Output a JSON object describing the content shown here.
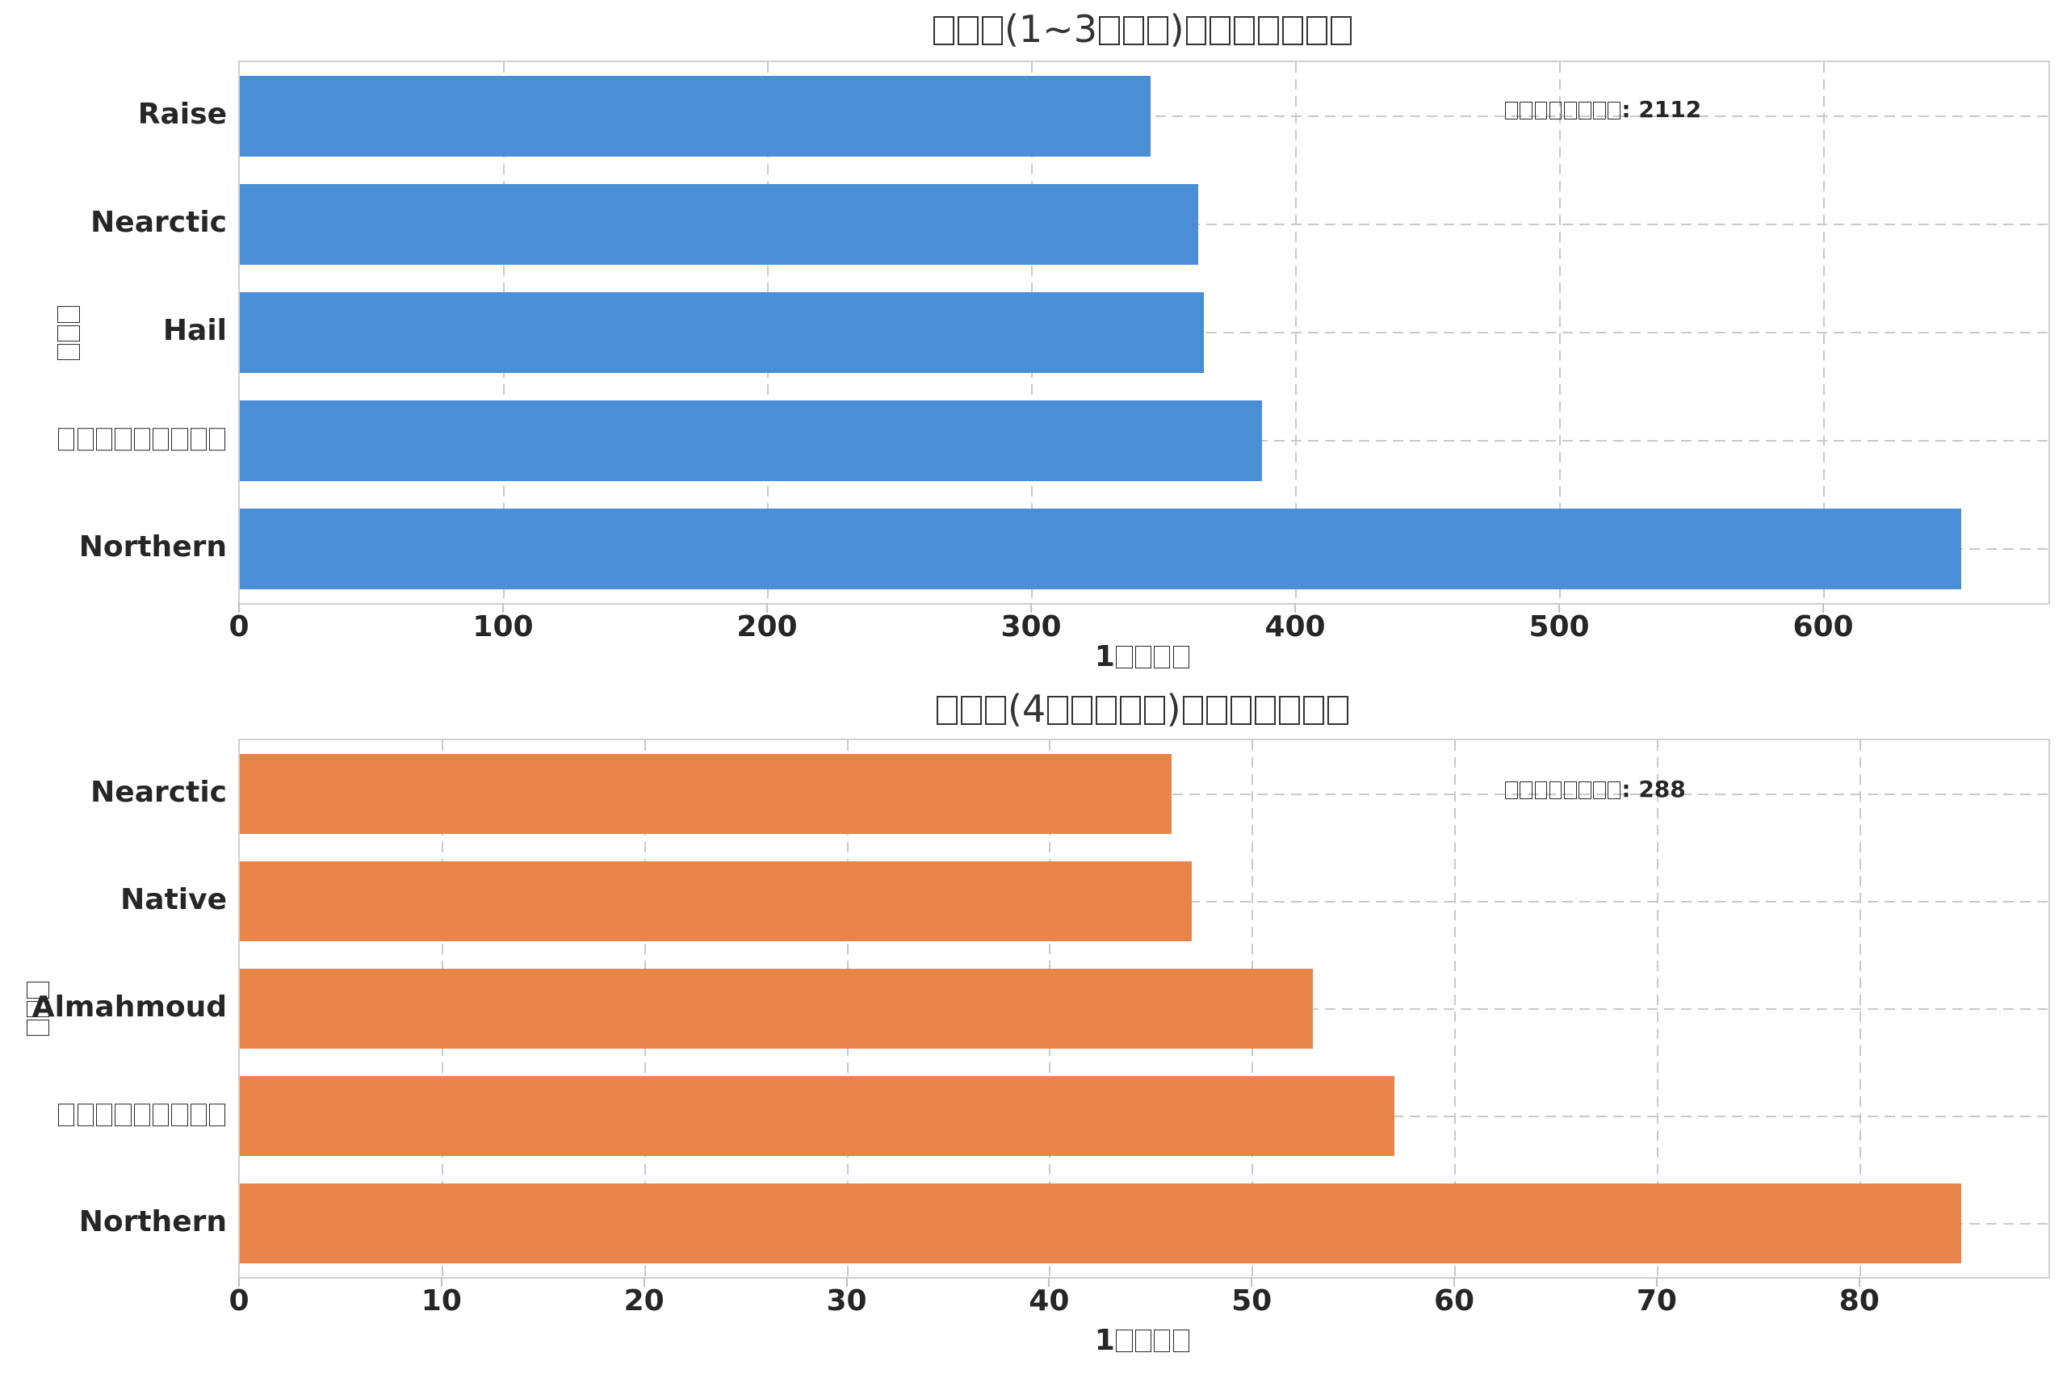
{
  "figure": {
    "background": "#ffffff",
    "text_color": "#262626",
    "grid_color": "#c9c9c9",
    "spine_color": "#cfcfcf"
  },
  "chart_data": [
    {
      "type": "bar",
      "orientation": "horizontal",
      "title": "□□□(1~3□□□)□□□□□□□",
      "xlabel": "1□□□□",
      "ylabel": "□□□",
      "annotation": "□□□□□□□□: 2112",
      "categories": [
        "Raise",
        "Nearctic",
        "Hail",
        "□□□□□□□□□",
        "Northern"
      ],
      "values": [
        345,
        363,
        365,
        387,
        652
      ],
      "total": 2112,
      "bar_color": "#4a8ed5",
      "xticks": [
        0,
        100,
        200,
        300,
        400,
        500,
        600
      ],
      "xlim": [
        0,
        685
      ],
      "grid": "dashed",
      "bar_fraction": 0.75
    },
    {
      "type": "bar",
      "orientation": "horizontal",
      "title": "□□□(4□□□□□)□□□□□□□",
      "xlabel": "1□□□□",
      "ylabel": "□□□",
      "annotation": "□□□□□□□□: 288",
      "categories": [
        "Nearctic",
        "Native",
        "Almahmoud",
        "□□□□□□□□□",
        "Northern"
      ],
      "values": [
        46,
        47,
        53,
        57,
        85
      ],
      "total": 288,
      "bar_color": "#e8834a",
      "xticks": [
        0,
        10,
        20,
        30,
        40,
        50,
        60,
        70,
        80
      ],
      "xlim": [
        0,
        89.3
      ],
      "grid": "dashed",
      "bar_fraction": 0.75
    }
  ]
}
